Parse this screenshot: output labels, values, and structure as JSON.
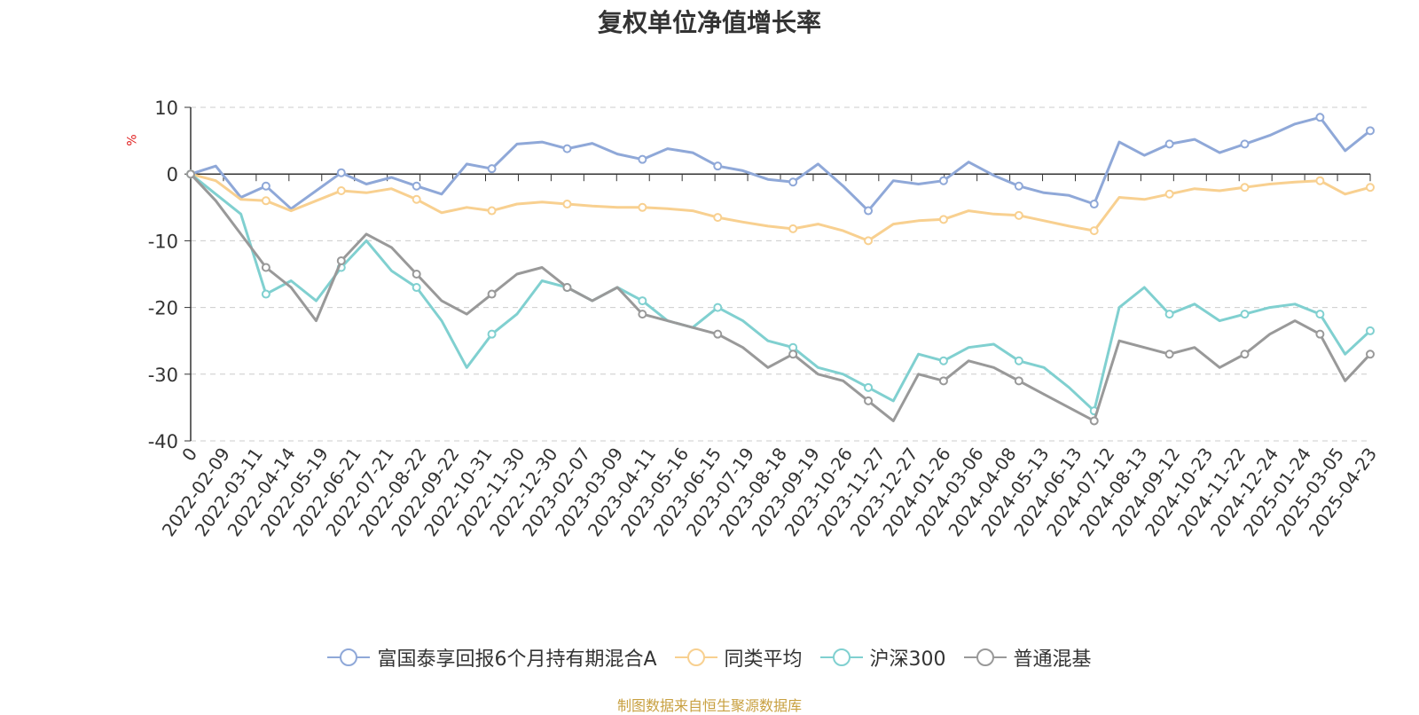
{
  "chart_data": {
    "type": "line",
    "title": "复权单位净值增长率",
    "ylabel": "%",
    "ylim": [
      -40,
      10
    ],
    "yticks": [
      10,
      0,
      -10,
      -20,
      -30,
      -40
    ],
    "grid": true,
    "legend_position": "bottom",
    "source": "制图数据来自恒生聚源数据库",
    "x_tick_labels": [
      "0",
      "2022-02-09",
      "2022-03-11",
      "2022-04-14",
      "2022-05-19",
      "2022-06-21",
      "2022-07-21",
      "2022-08-22",
      "2022-09-22",
      "2022-10-31",
      "2022-11-30",
      "2022-12-30",
      "2023-02-07",
      "2023-03-09",
      "2023-04-11",
      "2023-05-16",
      "2023-06-15",
      "2023-07-19",
      "2023-08-18",
      "2023-09-19",
      "2023-10-26",
      "2023-11-27",
      "2023-12-27",
      "2024-01-26",
      "2024-03-06",
      "2024-04-08",
      "2024-05-13",
      "2024-06-13",
      "2024-07-12",
      "2024-08-13",
      "2024-09-12",
      "2024-10-23",
      "2024-11-22",
      "2024-12-24",
      "2025-01-24",
      "2025-03-05",
      "2025-04-23"
    ],
    "series": [
      {
        "name": "富国泰享回报6个月持有期混合A",
        "color": "#8fa8d8",
        "values": [
          0,
          1.2,
          -3.5,
          -1.8,
          -5.2,
          -2.5,
          0.2,
          -1.5,
          -0.5,
          -1.8,
          -3,
          1.5,
          0.8,
          4.5,
          4.8,
          3.8,
          4.6,
          3,
          2.2,
          3.8,
          3.2,
          1.2,
          0.5,
          -0.8,
          -1.2,
          1.5,
          -1.8,
          -5.5,
          -1,
          -1.5,
          -1,
          1.8,
          -0.2,
          -1.8,
          -2.8,
          -3.2,
          -4.5,
          4.8,
          2.8,
          4.5,
          5.2,
          3.2,
          4.5,
          5.8,
          7.5,
          8.5,
          3.5,
          6.5
        ]
      },
      {
        "name": "同类平均",
        "color": "#f8d090",
        "values": [
          0,
          -1,
          -3.8,
          -4,
          -5.5,
          -4,
          -2.5,
          -2.8,
          -2.2,
          -3.8,
          -5.8,
          -5,
          -5.5,
          -4.5,
          -4.2,
          -4.5,
          -4.8,
          -5,
          -5,
          -5.2,
          -5.5,
          -6.5,
          -7.2,
          -7.8,
          -8.2,
          -7.5,
          -8.5,
          -10,
          -7.5,
          -7,
          -6.8,
          -5.5,
          -6,
          -6.2,
          -7,
          -7.8,
          -8.5,
          -3.5,
          -3.8,
          -3,
          -2.2,
          -2.5,
          -2,
          -1.5,
          -1.2,
          -1,
          -3,
          -2
        ]
      },
      {
        "name": "沪深300",
        "color": "#80d0d0",
        "values": [
          0,
          -3,
          -6,
          -18,
          -16,
          -19,
          -14,
          -10,
          -14.5,
          -17,
          -22,
          -29,
          -24,
          -21,
          -16,
          -17,
          -19,
          -17,
          -19,
          -22,
          -23,
          -20,
          -22,
          -25,
          -26,
          -29,
          -30,
          -32,
          -34,
          -27,
          -28,
          -26,
          -25.5,
          -28,
          -29,
          -32,
          -35.5,
          -20,
          -17,
          -21,
          -19.5,
          -22,
          -21,
          -20,
          -19.5,
          -21,
          -27,
          -23.5
        ]
      },
      {
        "name": "普通混基",
        "color": "#999999",
        "values": [
          0,
          -4,
          -9,
          -14,
          -17,
          -22,
          -13,
          -9,
          -11,
          -15,
          -19,
          -21,
          -18,
          -15,
          -14,
          -17,
          -19,
          -17,
          -21,
          -22,
          -23,
          -24,
          -26,
          -29,
          -27,
          -30,
          -31,
          -34,
          -37,
          -30,
          -31,
          -28,
          -29,
          -31,
          -33,
          -35,
          -37,
          -25,
          -26,
          -27,
          -26,
          -29,
          -27,
          -24,
          -22,
          -24,
          -31,
          -27
        ]
      }
    ]
  }
}
